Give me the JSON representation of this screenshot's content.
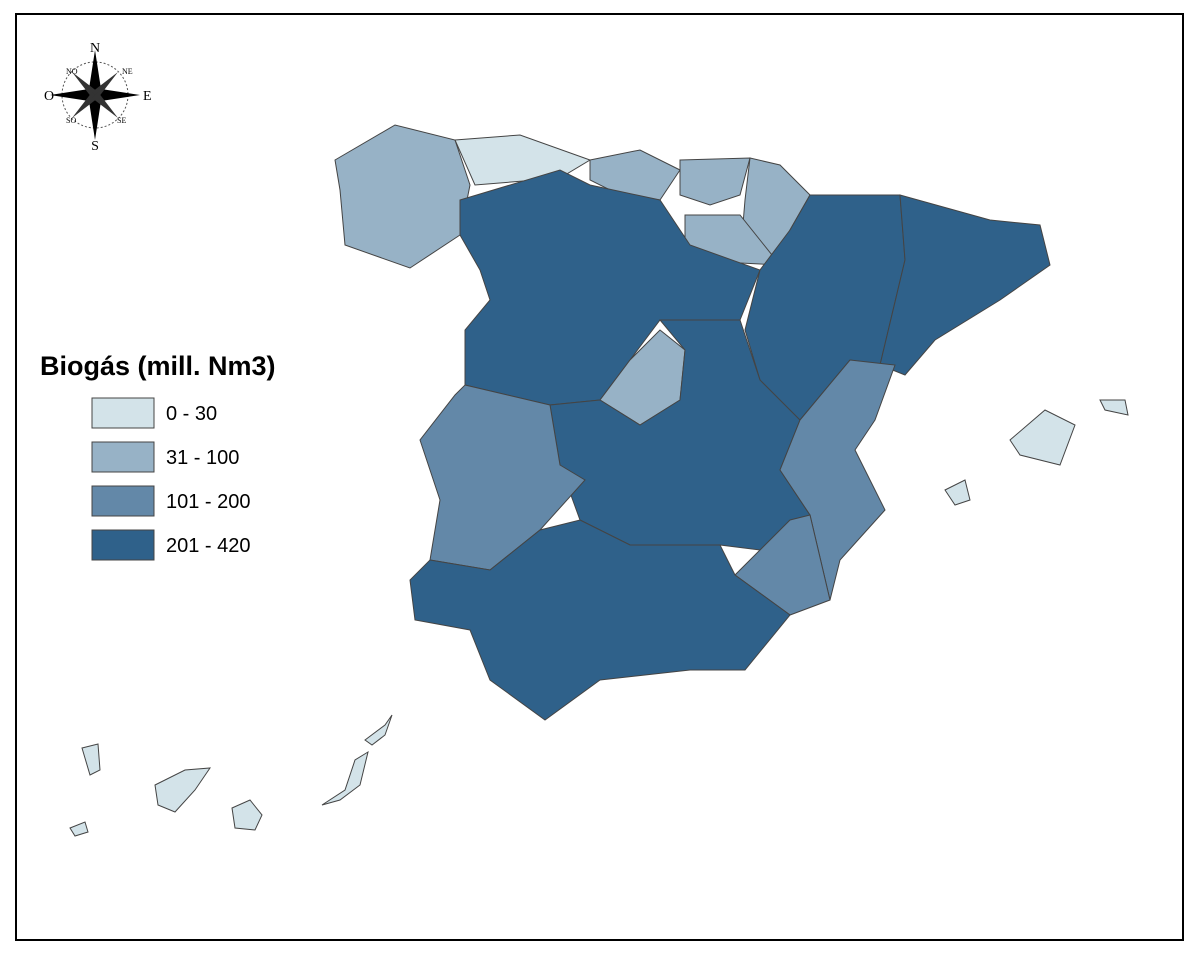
{
  "legend": {
    "title": "Biogás (mill. Nm3)",
    "classes": [
      {
        "label": "0 - 30",
        "color": "#d3e3e9"
      },
      {
        "label": "31 - 100",
        "color": "#97b2c6"
      },
      {
        "label": "101 - 200",
        "color": "#6388a8"
      },
      {
        "label": "201 - 420",
        "color": "#2f618a"
      }
    ]
  },
  "compass": {
    "n": "N",
    "ne": "NE",
    "e": "E",
    "se": "SE",
    "s": "S",
    "so": "SO",
    "o": "O",
    "no": "NO"
  }
}
